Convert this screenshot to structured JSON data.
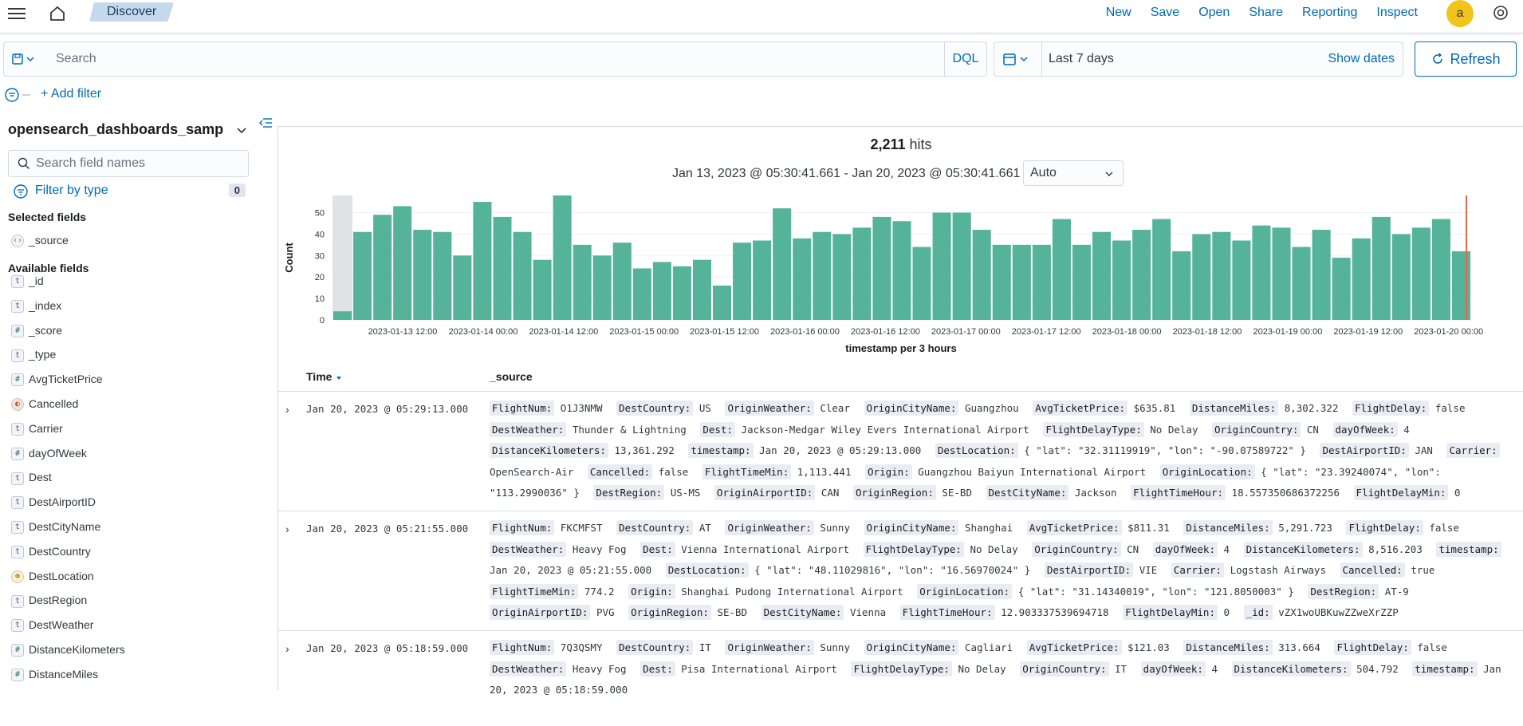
{
  "topbar": {
    "breadcrumb": "Discover",
    "links": [
      "New",
      "Save",
      "Open",
      "Share",
      "Reporting",
      "Inspect"
    ],
    "avatar": "a"
  },
  "query": {
    "placeholder": "Search",
    "language": "DQL",
    "date_range": "Last 7 days",
    "show_dates": "Show dates",
    "refresh": "Refresh"
  },
  "filters": {
    "add_filter": "+ Add filter"
  },
  "sidebar": {
    "index_pattern": "opensearch_dashboards_samp...",
    "search_placeholder": "Search field names",
    "filter_by_type": "Filter by type",
    "filter_count": "0",
    "selected_title": "Selected fields",
    "selected": [
      {
        "name": "_source",
        "type": "src"
      }
    ],
    "available_title": "Available fields",
    "available": [
      {
        "name": "_id",
        "type": "t"
      },
      {
        "name": "_index",
        "type": "t"
      },
      {
        "name": "_score",
        "type": "#"
      },
      {
        "name": "_type",
        "type": "t"
      },
      {
        "name": "AvgTicketPrice",
        "type": "#"
      },
      {
        "name": "Cancelled",
        "type": "bool"
      },
      {
        "name": "Carrier",
        "type": "t"
      },
      {
        "name": "dayOfWeek",
        "type": "#"
      },
      {
        "name": "Dest",
        "type": "t"
      },
      {
        "name": "DestAirportID",
        "type": "t"
      },
      {
        "name": "DestCityName",
        "type": "t"
      },
      {
        "name": "DestCountry",
        "type": "t"
      },
      {
        "name": "DestLocation",
        "type": "geo"
      },
      {
        "name": "DestRegion",
        "type": "t"
      },
      {
        "name": "DestWeather",
        "type": "t"
      },
      {
        "name": "DistanceKilometers",
        "type": "#"
      },
      {
        "name": "DistanceMiles",
        "type": "#"
      }
    ]
  },
  "histogram": {
    "hits": "2,211",
    "hits_label": "hits",
    "range": "Jan 13, 2023 @ 05:30:41.661 - Jan 20, 2023 @ 05:30:41.661",
    "interval": "Auto",
    "bar_color": "#54b399"
  },
  "chart_data": {
    "type": "bar",
    "xlabel": "timestamp per 3 hours",
    "ylabel": "Count",
    "ylim": [
      0,
      58
    ],
    "yticks": [
      0,
      10,
      20,
      30,
      40,
      50
    ],
    "x_tick_labels": [
      "2023-01-13 12:00",
      "2023-01-14 00:00",
      "2023-01-14 12:00",
      "2023-01-15 00:00",
      "2023-01-15 12:00",
      "2023-01-16 00:00",
      "2023-01-16 12:00",
      "2023-01-17 00:00",
      "2023-01-17 12:00",
      "2023-01-18 00:00",
      "2023-01-18 12:00",
      "2023-01-19 00:00",
      "2023-01-19 12:00",
      "2023-01-20 00:00"
    ],
    "values": [
      4,
      41,
      49,
      53,
      42,
      41,
      30,
      55,
      48,
      41,
      28,
      58,
      35,
      30,
      36,
      24,
      27,
      25,
      28,
      16,
      36,
      37,
      52,
      38,
      41,
      40,
      43,
      48,
      46,
      34,
      50,
      50,
      42,
      35,
      35,
      35,
      47,
      35,
      41,
      37,
      42,
      47,
      32,
      40,
      41,
      37,
      44,
      43,
      34,
      42,
      29,
      38,
      48,
      40,
      43,
      47,
      32
    ]
  },
  "table": {
    "col_time": "Time",
    "col_source": "_source",
    "rows": [
      {
        "time": "Jan 20, 2023 @ 05:29:13.000",
        "fields": [
          [
            "FlightNum:",
            "O1J3NMW"
          ],
          [
            "DestCountry:",
            "US"
          ],
          [
            "OriginWeather:",
            "Clear"
          ],
          [
            "OriginCityName:",
            "Guangzhou"
          ],
          [
            "AvgTicketPrice:",
            "$635.81"
          ],
          [
            "DistanceMiles:",
            "8,302.322"
          ],
          [
            "FlightDelay:",
            "false"
          ],
          [
            "DestWeather:",
            "Thunder & Lightning"
          ],
          [
            "Dest:",
            "Jackson-Medgar Wiley Evers International Airport"
          ],
          [
            "FlightDelayType:",
            "No Delay"
          ],
          [
            "OriginCountry:",
            "CN"
          ],
          [
            "dayOfWeek:",
            "4"
          ],
          [
            "DistanceKilometers:",
            "13,361.292"
          ],
          [
            "timestamp:",
            "Jan 20, 2023 @ 05:29:13.000"
          ],
          [
            "DestLocation:",
            "{ \"lat\": \"32.31119919\", \"lon\": \"-90.07589722\" }"
          ],
          [
            "DestAirportID:",
            "JAN"
          ],
          [
            "Carrier:",
            "OpenSearch-Air"
          ],
          [
            "Cancelled:",
            "false"
          ],
          [
            "FlightTimeMin:",
            "1,113.441"
          ],
          [
            "Origin:",
            "Guangzhou Baiyun International Airport"
          ],
          [
            "OriginLocation:",
            "{ \"lat\": \"23.39240074\", \"lon\": \"113.2990036\" }"
          ],
          [
            "DestRegion:",
            "US-MS"
          ],
          [
            "OriginAirportID:",
            "CAN"
          ],
          [
            "OriginRegion:",
            "SE-BD"
          ],
          [
            "DestCityName:",
            "Jackson"
          ],
          [
            "FlightTimeHour:",
            "18.557350686372256"
          ],
          [
            "FlightDelayMin:",
            "0"
          ]
        ]
      },
      {
        "time": "Jan 20, 2023 @ 05:21:55.000",
        "fields": [
          [
            "FlightNum:",
            "FKCMFST"
          ],
          [
            "DestCountry:",
            "AT"
          ],
          [
            "OriginWeather:",
            "Sunny"
          ],
          [
            "OriginCityName:",
            "Shanghai"
          ],
          [
            "AvgTicketPrice:",
            "$811.31"
          ],
          [
            "DistanceMiles:",
            "5,291.723"
          ],
          [
            "FlightDelay:",
            "false"
          ],
          [
            "DestWeather:",
            "Heavy Fog"
          ],
          [
            "Dest:",
            "Vienna International Airport"
          ],
          [
            "FlightDelayType:",
            "No Delay"
          ],
          [
            "OriginCountry:",
            "CN"
          ],
          [
            "dayOfWeek:",
            "4"
          ],
          [
            "DistanceKilometers:",
            "8,516.203"
          ],
          [
            "timestamp:",
            "Jan 20, 2023 @ 05:21:55.000"
          ],
          [
            "DestLocation:",
            "{ \"lat\": \"48.11029816\", \"lon\": \"16.56970024\" }"
          ],
          [
            "DestAirportID:",
            "VIE"
          ],
          [
            "Carrier:",
            "Logstash Airways"
          ],
          [
            "Cancelled:",
            "true"
          ],
          [
            "FlightTimeMin:",
            "774.2"
          ],
          [
            "Origin:",
            "Shanghai Pudong International Airport"
          ],
          [
            "OriginLocation:",
            "{ \"lat\": \"31.14340019\", \"lon\": \"121.8050003\" }"
          ],
          [
            "DestRegion:",
            "AT-9"
          ],
          [
            "OriginAirportID:",
            "PVG"
          ],
          [
            "OriginRegion:",
            "SE-BD"
          ],
          [
            "DestCityName:",
            "Vienna"
          ],
          [
            "FlightTimeHour:",
            "12.903337539694718"
          ],
          [
            "FlightDelayMin:",
            "0"
          ],
          [
            "_id:",
            "vZX1woUBKuwZZweXrZZP"
          ]
        ]
      },
      {
        "time": "Jan 20, 2023 @ 05:18:59.000",
        "fields": [
          [
            "FlightNum:",
            "7Q3QSMY"
          ],
          [
            "DestCountry:",
            "IT"
          ],
          [
            "OriginWeather:",
            "Sunny"
          ],
          [
            "OriginCityName:",
            "Cagliari"
          ],
          [
            "AvgTicketPrice:",
            "$121.03"
          ],
          [
            "DistanceMiles:",
            "313.664"
          ],
          [
            "FlightDelay:",
            "false"
          ],
          [
            "DestWeather:",
            "Heavy Fog"
          ],
          [
            "Dest:",
            "Pisa International Airport"
          ],
          [
            "FlightDelayType:",
            "No Delay"
          ],
          [
            "OriginCountry:",
            "IT"
          ],
          [
            "dayOfWeek:",
            "4"
          ],
          [
            "DistanceKilometers:",
            "504.792"
          ],
          [
            "timestamp:",
            "Jan 20, 2023 @ 05:18:59.000"
          ]
        ]
      }
    ]
  }
}
